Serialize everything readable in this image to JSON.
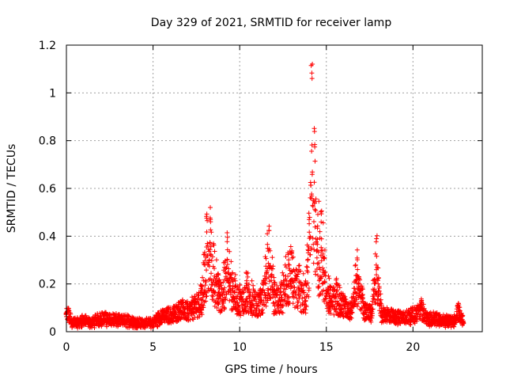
{
  "chart_data": {
    "type": "scatter",
    "title": "Day 329 of 2021, SRMTID for receiver lamp",
    "xlabel": "GPS time / hours",
    "ylabel": "SRMTID / TECUs",
    "xlim": [
      0,
      24
    ],
    "ylim": [
      0,
      1.2
    ],
    "x_ticks": [
      0,
      5,
      10,
      15,
      20
    ],
    "x_tick_labels": [
      "0",
      "5",
      "10",
      "15",
      "20"
    ],
    "y_ticks": [
      0,
      0.2,
      0.4,
      0.6,
      0.8,
      1.0,
      1.2
    ],
    "y_tick_labels": [
      "0",
      "0.2",
      "0.4",
      "0.6",
      "0.8",
      "1",
      "1.2"
    ],
    "grid": true,
    "marker": "plus",
    "color": "#ff0000",
    "series": [
      {
        "name": "lamp",
        "description": "approximate envelope of the dense point cloud (hour, SRMTID)",
        "x": [
          0.0,
          0.1,
          0.3,
          0.6,
          1.0,
          1.4,
          2.0,
          2.5,
          3.0,
          3.5,
          4.0,
          4.5,
          5.0,
          5.4,
          5.8,
          6.2,
          6.6,
          7.0,
          7.4,
          7.8,
          8.1,
          8.3,
          8.5,
          8.8,
          9.1,
          9.3,
          9.6,
          10.0,
          10.4,
          10.8,
          11.2,
          11.5,
          11.7,
          12.0,
          12.4,
          12.8,
          13.0,
          13.4,
          13.8,
          14.0,
          14.15,
          14.3,
          14.5,
          14.7,
          14.9,
          15.2,
          15.6,
          16.0,
          16.4,
          16.8,
          17.2,
          17.6,
          17.9,
          18.2,
          18.6,
          19.0,
          19.4,
          19.8,
          20.2,
          20.5,
          20.8,
          21.2,
          21.6,
          22.0,
          22.4,
          22.6,
          22.9
        ],
        "y": [
          0.08,
          0.1,
          0.04,
          0.04,
          0.05,
          0.04,
          0.06,
          0.06,
          0.05,
          0.05,
          0.04,
          0.04,
          0.04,
          0.07,
          0.09,
          0.1,
          0.13,
          0.12,
          0.15,
          0.2,
          0.5,
          0.52,
          0.38,
          0.22,
          0.3,
          0.42,
          0.25,
          0.2,
          0.25,
          0.2,
          0.18,
          0.32,
          0.48,
          0.2,
          0.22,
          0.35,
          0.36,
          0.28,
          0.22,
          0.52,
          1.18,
          0.9,
          0.5,
          0.58,
          0.35,
          0.2,
          0.22,
          0.15,
          0.12,
          0.35,
          0.12,
          0.1,
          0.42,
          0.09,
          0.09,
          0.07,
          0.08,
          0.08,
          0.1,
          0.14,
          0.06,
          0.06,
          0.05,
          0.05,
          0.05,
          0.12,
          0.04
        ]
      }
    ]
  }
}
